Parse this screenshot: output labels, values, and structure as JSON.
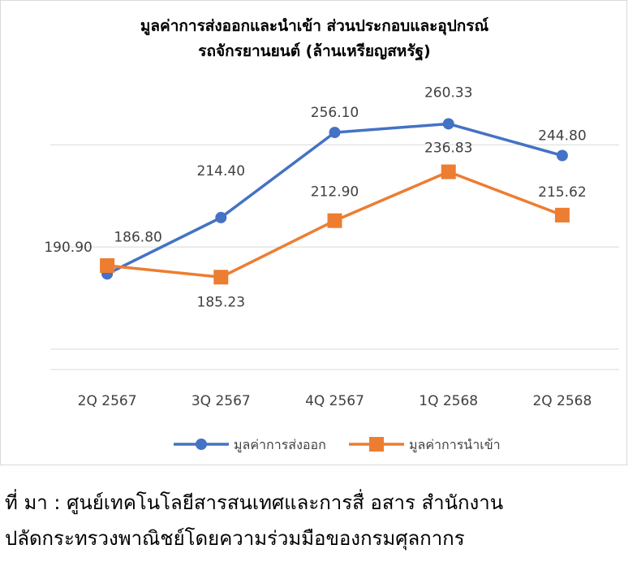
{
  "chart_data": {
    "type": "line",
    "title_line1": "มูลค่าการส่งออกและนำเข้า ส่วนประกอบและอุปกรณ์",
    "title_line2": "รถจักรยานยนต์  (ล้านเหรียญสหรัฐ)",
    "categories": [
      "2Q 2567",
      "3Q 2567",
      "4Q 2567",
      "1Q 2568",
      "2Q 2568"
    ],
    "series": [
      {
        "name": "มูลค่าการส่งออก",
        "marker": "circle",
        "color": "#4472c4",
        "values": [
          186.8,
          214.4,
          256.1,
          260.33,
          244.8
        ],
        "labels": [
          "186.80",
          "214.40",
          "256.10",
          "260.33",
          "244.80"
        ]
      },
      {
        "name": "มูลค่าการนำเข้า",
        "marker": "square",
        "color": "#ed7d31",
        "values": [
          190.9,
          185.23,
          212.9,
          236.83,
          215.62
        ],
        "labels": [
          "190.90",
          "185.23",
          "212.90",
          "236.83",
          "215.62"
        ]
      }
    ],
    "ylim": [
      140,
      280
    ],
    "grid": true,
    "legend": "bottom"
  },
  "source": {
    "line1": "ที่ มา : ศูนย์เทคโนโลยีสารสนเทศและการสื่ อสาร สำนักงาน",
    "line2": "ปลัดกระทรวงพาณิชย์โดยความร่วมมือของกรมศุลกากร"
  }
}
